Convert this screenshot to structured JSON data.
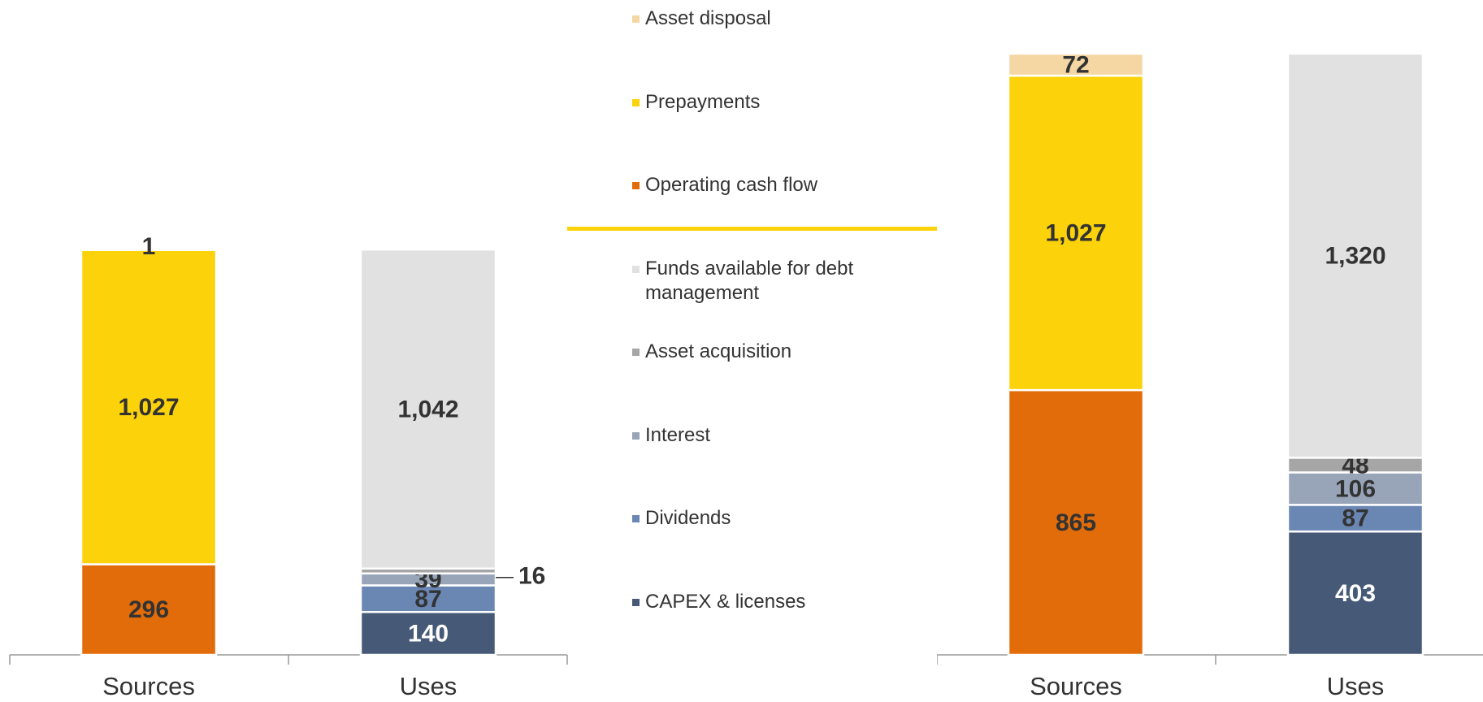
{
  "chart_data": [
    {
      "type": "stacked_bar",
      "categories": [
        "Sources",
        "Uses"
      ],
      "ylim": [
        0,
        1964
      ],
      "series": [
        {
          "name": "Operating cash flow",
          "color": "#e36c0a",
          "values": [
            296,
            null
          ],
          "value_labels": [
            "296",
            null
          ]
        },
        {
          "name": "Prepayments",
          "color": "#fcd20a",
          "values": [
            1027,
            null
          ],
          "value_labels": [
            "1,027",
            null
          ]
        },
        {
          "name": "Asset disposal",
          "color": "#f5d7a4",
          "values": [
            1,
            null
          ],
          "value_labels": [
            "1",
            null
          ]
        },
        {
          "name": "CAPEX & licenses",
          "color": "#465a78",
          "values": [
            null,
            140
          ],
          "value_labels": [
            null,
            "140"
          ]
        },
        {
          "name": "Dividends",
          "color": "#6a87b4",
          "values": [
            null,
            87
          ],
          "value_labels": [
            null,
            "87"
          ]
        },
        {
          "name": "Interest",
          "color": "#98a4b8",
          "values": [
            null,
            39
          ],
          "value_labels": [
            null,
            "39"
          ]
        },
        {
          "name": "Asset acquisition",
          "color": "#a6a6a6",
          "values": [
            null,
            16
          ],
          "value_labels": [
            null,
            "16"
          ]
        },
        {
          "name": "Funds available for debt management",
          "color": "#e1e1e1",
          "values": [
            null,
            1042
          ],
          "value_labels": [
            null,
            "1,042"
          ]
        }
      ]
    },
    {
      "type": "stacked_bar",
      "categories": [
        "Sources",
        "Uses"
      ],
      "ylim": [
        0,
        1964
      ],
      "series": [
        {
          "name": "Operating cash flow",
          "color": "#e36c0a",
          "values": [
            865,
            null
          ]
        },
        {
          "name": "Prepayments",
          "color": "#fcd20a",
          "values": [
            1027,
            null
          ],
          "value_labels": [
            "1,027",
            null
          ]
        },
        {
          "name": "Asset disposal",
          "color": "#f5d7a4",
          "values": [
            72,
            null
          ]
        },
        {
          "name": "CAPEX & licenses",
          "color": "#465a78",
          "values": [
            null,
            403
          ]
        },
        {
          "name": "Dividends",
          "color": "#6a87b4",
          "values": [
            null,
            87
          ]
        },
        {
          "name": "Interest",
          "color": "#98a4b8",
          "values": [
            null,
            106
          ]
        },
        {
          "name": "Asset acquisition",
          "color": "#a6a6a6",
          "values": [
            null,
            48
          ]
        },
        {
          "name": "Funds available for debt management",
          "color": "#e1e1e1",
          "values": [
            null,
            1320
          ],
          "value_labels": [
            null,
            "1,320"
          ]
        }
      ]
    }
  ]
}
